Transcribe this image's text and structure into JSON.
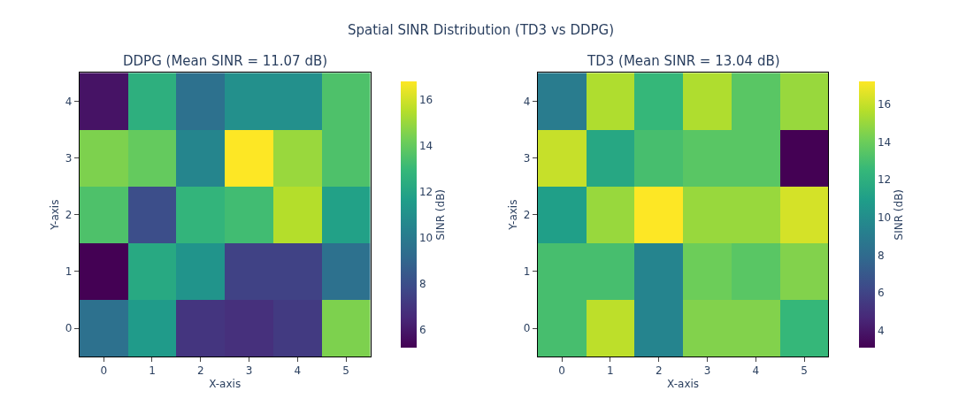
{
  "chart_data": [
    {
      "type": "heatmap",
      "title": "DDPG (Mean SINR = 11.07 dB)",
      "annotations": [
        "Spatial SINR Distribution (TD3 vs DDPG)"
      ],
      "xlabel": "X-axis",
      "ylabel": "Y-axis",
      "clabel": "SINR (dB)",
      "categories": [
        "0",
        "1",
        "2",
        "3",
        "4",
        "5"
      ],
      "y_categories": [
        "4",
        "3",
        "2",
        "1",
        "0"
      ],
      "cells": [
        [
          5.8,
          12.5,
          9.5,
          11,
          11,
          13.5
        ],
        [
          14.5,
          14,
          10.5,
          16.8,
          15,
          13.5
        ],
        [
          13.5,
          8,
          12.8,
          13.2,
          15.5,
          11.8
        ],
        [
          5.2,
          12.2,
          11.2,
          7.5,
          7.5,
          9.5
        ],
        [
          9.5,
          11.5,
          7,
          6.8,
          7.2,
          14.5
        ]
      ],
      "clim": [
        5.2,
        16.8
      ],
      "cticks": [
        6,
        8,
        10,
        12,
        14,
        16
      ]
    },
    {
      "type": "heatmap",
      "title": "TD3 (Mean SINR = 13.04 dB)",
      "xlabel": "X-axis",
      "ylabel": "Y-axis",
      "clabel": "SINR (dB)",
      "categories": [
        "0",
        "1",
        "2",
        "3",
        "4",
        "5"
      ],
      "y_categories": [
        "4",
        "3",
        "2",
        "1",
        "0"
      ],
      "cells": [
        [
          9,
          15.5,
          12.5,
          15.5,
          13.5,
          15
        ],
        [
          16,
          11.5,
          13,
          13.5,
          13.5,
          3.1
        ],
        [
          11,
          15,
          17.2,
          15,
          15,
          16.3
        ],
        [
          13,
          13,
          9.5,
          14,
          13.5,
          14.5
        ],
        [
          13,
          15.8,
          9.5,
          14.5,
          14.5,
          12.5
        ]
      ],
      "clim": [
        3.1,
        17.2
      ],
      "cticks": [
        4,
        6,
        8,
        10,
        12,
        14,
        16
      ]
    }
  ]
}
